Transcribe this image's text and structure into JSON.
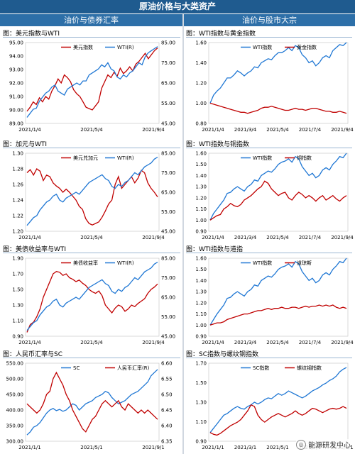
{
  "header": {
    "title": "原油价格与大类资产",
    "left_section": "油价与债券汇率",
    "right_section": "油价与股市大宗"
  },
  "colors": {
    "blue": "#1f77d4",
    "red": "#c00000",
    "header_bg": "#1f5b8f"
  },
  "watermark": {
    "text": "能源研发中心",
    "icon": "wechat-icon"
  },
  "chart_data": [
    {
      "id": "p1",
      "type": "line",
      "title": "图：美元指数与WTI",
      "xticks": [
        "2021/1/4",
        "2021/5/4",
        "2021/9/4"
      ],
      "left_axis": {
        "min": 89,
        "max": 95,
        "ticks": [
          "89.00",
          "90.00",
          "91.00",
          "92.00",
          "93.00",
          "94.00",
          "95.00"
        ]
      },
      "right_axis": {
        "min": 45,
        "max": 85,
        "ticks": [
          "45.00",
          "55.00",
          "65.00",
          "75.00",
          "85.00"
        ]
      },
      "legend": [
        "美元指数",
        "WTI(R)"
      ],
      "series": [
        {
          "name": "美元指数",
          "color": "red",
          "axis": "left",
          "values": [
            89.9,
            90.2,
            90.6,
            90.4,
            90.9,
            90.6,
            91.0,
            90.8,
            91.4,
            91.8,
            92.3,
            92.0,
            92.6,
            92.4,
            92.1,
            91.5,
            91.2,
            91.0,
            90.6,
            90.2,
            90.1,
            90.0,
            90.3,
            90.6,
            91.6,
            92.1,
            92.6,
            92.4,
            92.8,
            92.5,
            93.1,
            92.7,
            92.9,
            93.2,
            92.9,
            93.4,
            93.6,
            93.9,
            94.2,
            93.8,
            94.1,
            94.4,
            94.6
          ]
        },
        {
          "name": "WTI(R)",
          "color": "blue",
          "axis": "right",
          "values": [
            48,
            50,
            52,
            52.5,
            56,
            58,
            60,
            61,
            63,
            64,
            61,
            60,
            59,
            62,
            63,
            64,
            65,
            64,
            66,
            66,
            69,
            70,
            71,
            72,
            74,
            73,
            75,
            72,
            71,
            68,
            67,
            69,
            68,
            70,
            71,
            73,
            75,
            74,
            78,
            80,
            81,
            82,
            83
          ]
        }
      ]
    },
    {
      "id": "p2",
      "type": "line",
      "title": "图：WTI指数与黄金指数",
      "xticks": [
        "2021/1/4",
        "2021/3/4",
        "2021/5/4",
        "2021/7/4",
        "2021/9/4"
      ],
      "left_axis": {
        "min": 0.8,
        "max": 1.6,
        "ticks": [
          "0.80",
          "1.00",
          "1.20",
          "1.40",
          "1.60"
        ]
      },
      "legend": [
        "WTI指数",
        "黄金指数"
      ],
      "series": [
        {
          "name": "WTI指数",
          "color": "blue",
          "axis": "left",
          "values": [
            1.0,
            1.08,
            1.12,
            1.15,
            1.2,
            1.25,
            1.25,
            1.28,
            1.32,
            1.3,
            1.27,
            1.3,
            1.32,
            1.36,
            1.35,
            1.4,
            1.42,
            1.44,
            1.43,
            1.47,
            1.5,
            1.5,
            1.52,
            1.55,
            1.52,
            1.57,
            1.55,
            1.48,
            1.45,
            1.4,
            1.42,
            1.37,
            1.4,
            1.45,
            1.47,
            1.45,
            1.52,
            1.55,
            1.58,
            1.57,
            1.6
          ]
        },
        {
          "name": "黄金指数",
          "color": "red",
          "axis": "left",
          "values": [
            1.0,
            0.99,
            0.98,
            0.97,
            0.96,
            0.95,
            0.94,
            0.93,
            0.92,
            0.91,
            0.91,
            0.9,
            0.91,
            0.92,
            0.93,
            0.95,
            0.96,
            0.96,
            0.97,
            0.96,
            0.95,
            0.94,
            0.93,
            0.93,
            0.94,
            0.95,
            0.94,
            0.94,
            0.93,
            0.94,
            0.95,
            0.95,
            0.94,
            0.93,
            0.92,
            0.92,
            0.91,
            0.91,
            0.92,
            0.91,
            0.9
          ]
        }
      ]
    },
    {
      "id": "p3",
      "type": "line",
      "title": "图：加元与WTI",
      "xticks": [
        "2021/1/4",
        "2021/5/4",
        "2021/9/4"
      ],
      "left_axis": {
        "min": 1.2,
        "max": 1.3,
        "ticks": [
          "1.20",
          "1.22",
          "1.24",
          "1.26",
          "1.28",
          "1.30"
        ]
      },
      "right_axis": {
        "min": 45,
        "max": 85,
        "ticks": [
          "45.00",
          "55.00",
          "65.00",
          "75.00",
          "85.00"
        ]
      },
      "legend": [
        "美元兑加元",
        "WTI(R)"
      ],
      "series": [
        {
          "name": "美元兑加元",
          "color": "red",
          "axis": "left",
          "values": [
            1.275,
            1.279,
            1.272,
            1.28,
            1.277,
            1.265,
            1.272,
            1.27,
            1.262,
            1.258,
            1.255,
            1.25,
            1.254,
            1.25,
            1.245,
            1.24,
            1.232,
            1.228,
            1.216,
            1.21,
            1.208,
            1.21,
            1.212,
            1.218,
            1.226,
            1.235,
            1.24,
            1.26,
            1.27,
            1.255,
            1.26,
            1.265,
            1.27,
            1.262,
            1.268,
            1.278,
            1.275,
            1.262,
            1.255,
            1.25,
            1.244
          ]
        },
        {
          "name": "WTI(R)",
          "color": "blue",
          "axis": "right",
          "values": [
            48,
            50,
            52,
            53,
            56,
            58,
            60,
            61,
            63,
            64,
            61,
            60,
            62,
            63,
            64,
            65,
            64,
            66,
            68,
            70,
            71,
            72,
            73,
            74,
            72,
            71,
            68,
            67,
            69,
            68,
            70,
            71,
            73,
            75,
            74,
            76,
            78,
            79,
            80,
            82,
            83
          ]
        }
      ]
    },
    {
      "id": "p4",
      "type": "line",
      "title": "图：WTI指数与铜指数",
      "xticks": [
        "2021/1/4",
        "2021/3/4",
        "2021/5/4",
        "2021/7/4",
        "2021/9/4"
      ],
      "left_axis": {
        "min": 0.9,
        "max": 1.6,
        "ticks": [
          "0.90",
          "1.00",
          "1.10",
          "1.20",
          "1.30",
          "1.40",
          "1.50",
          "1.60"
        ]
      },
      "legend": [
        "WTI指数",
        "铜指数"
      ],
      "series": [
        {
          "name": "WTI指数",
          "color": "blue",
          "axis": "left",
          "values": [
            1.0,
            1.06,
            1.1,
            1.14,
            1.18,
            1.24,
            1.25,
            1.28,
            1.3,
            1.28,
            1.26,
            1.3,
            1.32,
            1.36,
            1.35,
            1.4,
            1.42,
            1.44,
            1.43,
            1.46,
            1.5,
            1.52,
            1.53,
            1.55,
            1.52,
            1.57,
            1.55,
            1.48,
            1.44,
            1.4,
            1.42,
            1.38,
            1.4,
            1.45,
            1.47,
            1.45,
            1.5,
            1.53,
            1.57,
            1.56,
            1.6
          ]
        },
        {
          "name": "铜指数",
          "color": "red",
          "axis": "left",
          "values": [
            1.0,
            1.02,
            1.04,
            1.05,
            1.1,
            1.12,
            1.15,
            1.13,
            1.12,
            1.14,
            1.18,
            1.2,
            1.22,
            1.25,
            1.28,
            1.3,
            1.35,
            1.33,
            1.28,
            1.25,
            1.22,
            1.24,
            1.25,
            1.2,
            1.18,
            1.22,
            1.25,
            1.23,
            1.2,
            1.22,
            1.2,
            1.17,
            1.2,
            1.22,
            1.18,
            1.2,
            1.22,
            1.19,
            1.17,
            1.2,
            1.22
          ]
        }
      ]
    },
    {
      "id": "p5",
      "type": "line",
      "title": "图：美债收益率与WTI",
      "xticks": [
        "2021/1/4",
        "2021/5/4",
        "2021/9/4"
      ],
      "left_axis": {
        "min": 0.9,
        "max": 1.9,
        "ticks": [
          "0.90",
          "1.10",
          "1.30",
          "1.50",
          "1.70",
          "1.90"
        ]
      },
      "right_axis": {
        "min": 45,
        "max": 85,
        "ticks": [
          "45.00",
          "55.00",
          "65.00",
          "75.00",
          "85.00"
        ]
      },
      "legend": [
        "美债收益率",
        "WTI(R)"
      ],
      "series": [
        {
          "name": "美债收益率",
          "color": "red",
          "axis": "left",
          "values": [
            0.95,
            1.05,
            1.08,
            1.15,
            1.25,
            1.4,
            1.5,
            1.6,
            1.7,
            1.73,
            1.72,
            1.68,
            1.7,
            1.65,
            1.63,
            1.6,
            1.62,
            1.58,
            1.55,
            1.5,
            1.47,
            1.45,
            1.48,
            1.42,
            1.3,
            1.25,
            1.2,
            1.26,
            1.3,
            1.28,
            1.22,
            1.25,
            1.3,
            1.28,
            1.32,
            1.35,
            1.38,
            1.45,
            1.5,
            1.53,
            1.57
          ]
        },
        {
          "name": "WTI(R)",
          "color": "blue",
          "axis": "right",
          "values": [
            48,
            50,
            52,
            53,
            56,
            58,
            60,
            61,
            63,
            64,
            61,
            60,
            62,
            63,
            64,
            65,
            64,
            66,
            68,
            70,
            71,
            72,
            73,
            74,
            72,
            71,
            68,
            67,
            69,
            68,
            70,
            71,
            73,
            75,
            74,
            76,
            78,
            79,
            80,
            82,
            83
          ]
        }
      ]
    },
    {
      "id": "p6",
      "type": "line",
      "title": "图：WTI指数与道指",
      "xticks": [
        "2021/1/4",
        "2021/3/4",
        "2021/5/4",
        "2021/7/4",
        "2021/9/4"
      ],
      "left_axis": {
        "min": 0.9,
        "max": 1.6,
        "ticks": [
          "0.90",
          "1.00",
          "1.10",
          "1.20",
          "1.30",
          "1.40",
          "1.50",
          "1.60"
        ]
      },
      "legend": [
        "WTI指数",
        "道琼斯"
      ],
      "series": [
        {
          "name": "WTI指数",
          "color": "blue",
          "axis": "left",
          "values": [
            1.0,
            1.05,
            1.1,
            1.14,
            1.18,
            1.24,
            1.25,
            1.28,
            1.3,
            1.28,
            1.26,
            1.3,
            1.32,
            1.36,
            1.35,
            1.4,
            1.42,
            1.44,
            1.43,
            1.46,
            1.5,
            1.52,
            1.53,
            1.55,
            1.52,
            1.57,
            1.55,
            1.48,
            1.44,
            1.4,
            1.42,
            1.38,
            1.4,
            1.45,
            1.47,
            1.45,
            1.5,
            1.53,
            1.57,
            1.56,
            1.6
          ]
        },
        {
          "name": "道琼斯",
          "color": "red",
          "axis": "left",
          "values": [
            1.0,
            1.01,
            1.02,
            1.02,
            1.03,
            1.05,
            1.06,
            1.07,
            1.08,
            1.09,
            1.1,
            1.1,
            1.11,
            1.12,
            1.13,
            1.13,
            1.14,
            1.15,
            1.14,
            1.15,
            1.15,
            1.16,
            1.15,
            1.15,
            1.16,
            1.16,
            1.15,
            1.16,
            1.17,
            1.16,
            1.17,
            1.17,
            1.18,
            1.17,
            1.18,
            1.17,
            1.18,
            1.16,
            1.15,
            1.16,
            1.15
          ]
        }
      ]
    },
    {
      "id": "p7",
      "type": "line",
      "title": "图：人民币汇率与SC",
      "xticks": [
        "2021/1/1",
        "2021/5/1",
        "2021/9/1"
      ],
      "left_axis": {
        "min": 300,
        "max": 550,
        "ticks": [
          "300.00",
          "350.00",
          "400.00",
          "450.00",
          "500.00",
          "550.00"
        ]
      },
      "right_axis": {
        "min": 6.35,
        "max": 6.6,
        "ticks": [
          "6.35",
          "6.40",
          "6.45",
          "6.50",
          "6.55",
          "6.60"
        ]
      },
      "legend": [
        "SC",
        "人民币汇率(R)"
      ],
      "series": [
        {
          "name": "SC",
          "color": "blue",
          "axis": "left",
          "values": [
            320,
            330,
            345,
            350,
            360,
            375,
            390,
            400,
            405,
            398,
            402,
            396,
            400,
            410,
            420,
            415,
            400,
            410,
            420,
            425,
            430,
            440,
            445,
            450,
            460,
            455,
            440,
            430,
            420,
            425,
            430,
            440,
            450,
            455,
            460,
            470,
            480,
            490,
            510,
            520,
            530
          ]
        },
        {
          "name": "人民币汇率(R)",
          "color": "red",
          "axis": "right",
          "values": [
            6.47,
            6.46,
            6.45,
            6.44,
            6.45,
            6.47,
            6.5,
            6.51,
            6.55,
            6.57,
            6.55,
            6.53,
            6.5,
            6.48,
            6.45,
            6.43,
            6.41,
            6.39,
            6.38,
            6.4,
            6.42,
            6.43,
            6.45,
            6.47,
            6.48,
            6.47,
            6.46,
            6.47,
            6.48,
            6.46,
            6.45,
            6.47,
            6.46,
            6.45,
            6.44,
            6.45,
            6.44,
            6.45,
            6.44,
            6.43,
            6.42
          ]
        }
      ]
    },
    {
      "id": "p8",
      "type": "line",
      "title": "图：SC指数与螺纹钢指数",
      "xticks": [
        "2021/1/1",
        "2021/3/1",
        "2021/5/1",
        "2021/7/1",
        "2021/9/1"
      ],
      "left_axis": {
        "min": 0.9,
        "max": 1.8,
        "ticks": [
          "0.90",
          "1.10",
          "1.30",
          "1.50",
          "1.70"
        ]
      },
      "legend": [
        "SC指数",
        "螺纹钢指数"
      ],
      "series": [
        {
          "name": "SC指数",
          "color": "blue",
          "axis": "left",
          "values": [
            1.0,
            1.05,
            1.1,
            1.15,
            1.2,
            1.22,
            1.25,
            1.28,
            1.3,
            1.28,
            1.27,
            1.3,
            1.32,
            1.35,
            1.33,
            1.35,
            1.38,
            1.4,
            1.39,
            1.42,
            1.45,
            1.43,
            1.45,
            1.48,
            1.46,
            1.44,
            1.42,
            1.4,
            1.42,
            1.45,
            1.48,
            1.5,
            1.52,
            1.55,
            1.57,
            1.6,
            1.62,
            1.65,
            1.7,
            1.73,
            1.75
          ]
        },
        {
          "name": "螺纹钢指数",
          "color": "red",
          "axis": "left",
          "values": [
            1.0,
            0.98,
            0.97,
            0.99,
            1.02,
            1.05,
            1.08,
            1.1,
            1.12,
            1.15,
            1.2,
            1.25,
            1.32,
            1.3,
            1.2,
            1.15,
            1.12,
            1.15,
            1.18,
            1.2,
            1.22,
            1.2,
            1.18,
            1.2,
            1.22,
            1.25,
            1.22,
            1.2,
            1.22,
            1.25,
            1.28,
            1.27,
            1.25,
            1.23,
            1.25,
            1.27,
            1.28,
            1.27,
            1.28,
            1.3,
            1.28
          ]
        }
      ]
    }
  ]
}
